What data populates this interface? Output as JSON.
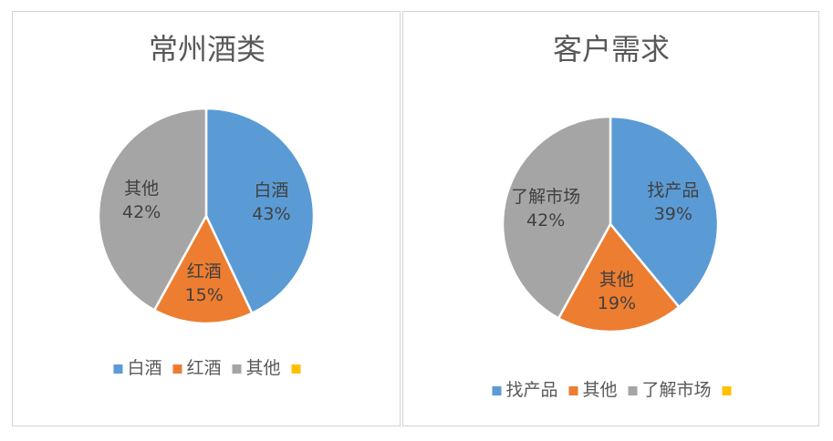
{
  "chart_data": [
    {
      "type": "pie",
      "title": "常州酒类",
      "slices": [
        {
          "label": "白酒",
          "value": 43,
          "display": "43%",
          "color": "#5B9BD5"
        },
        {
          "label": "红酒",
          "value": 15,
          "display": "15%",
          "color": "#ED7D31"
        },
        {
          "label": "其他",
          "value": 42,
          "display": "42%",
          "color": "#A5A5A5"
        }
      ],
      "legend": {
        "placement": "bottom",
        "items": [
          {
            "label": "白酒",
            "color": "#5B9BD5"
          },
          {
            "label": "红酒",
            "color": "#ED7D31"
          },
          {
            "label": "其他",
            "color": "#A5A5A5"
          },
          {
            "label": "",
            "color": "#FFC000"
          }
        ]
      }
    },
    {
      "type": "pie",
      "title": "客户需求",
      "slices": [
        {
          "label": "找产品",
          "value": 39,
          "display": "39%",
          "color": "#5B9BD5"
        },
        {
          "label": "其他",
          "value": 19,
          "display": "19%",
          "color": "#ED7D31"
        },
        {
          "label": "了解市场",
          "value": 42,
          "display": "42%",
          "color": "#A5A5A5"
        }
      ],
      "legend": {
        "placement": "bottom",
        "items": [
          {
            "label": "找产品",
            "color": "#5B9BD5"
          },
          {
            "label": "其他",
            "color": "#ED7D31"
          },
          {
            "label": "了解市场",
            "color": "#A5A5A5"
          },
          {
            "label": "",
            "color": "#FFC000"
          }
        ]
      }
    }
  ]
}
